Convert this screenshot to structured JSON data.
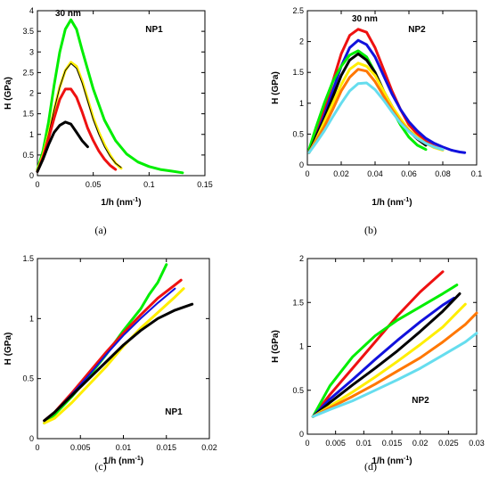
{
  "chart_data": [
    {
      "type": "line",
      "panel_caption": "(a)",
      "panel_name": "NP1",
      "annotation": "30 nm",
      "xlabel": "1/h (nm",
      "xlabel_sup": "-1",
      "xlabel_end": ")",
      "ylabel": "H (GPa)",
      "xlim": [
        0,
        0.15
      ],
      "ylim": [
        0,
        4
      ],
      "x_ticks": [
        0,
        0.05,
        0.1,
        0.15
      ],
      "x_tick_labels": [
        "0",
        "0.05",
        "0.1",
        "0.15"
      ],
      "y_ticks": [
        0,
        0.5,
        1,
        1.5,
        2,
        2.5,
        3,
        3.5,
        4
      ],
      "y_tick_labels": [
        "0",
        "0.5",
        "1",
        "1.5",
        "2",
        "2.5",
        "3",
        "3.5",
        "4"
      ],
      "grid": false,
      "series": [
        {
          "color": "#00ee00",
          "width": 3,
          "x": [
            0,
            0.005,
            0.01,
            0.015,
            0.02,
            0.025,
            0.03,
            0.035,
            0.04,
            0.05,
            0.06,
            0.07,
            0.08,
            0.09,
            0.1,
            0.11,
            0.12,
            0.13
          ],
          "y": [
            0.15,
            0.6,
            1.3,
            2.2,
            3.0,
            3.55,
            3.78,
            3.55,
            3.05,
            2.1,
            1.35,
            0.85,
            0.52,
            0.33,
            0.22,
            0.15,
            0.11,
            0.07
          ]
        },
        {
          "color": "#ffee00",
          "width": 3,
          "x": [
            0,
            0.005,
            0.01,
            0.015,
            0.02,
            0.025,
            0.03,
            0.035,
            0.04,
            0.045,
            0.05,
            0.055,
            0.06,
            0.065,
            0.07,
            0.075
          ],
          "y": [
            0.12,
            0.5,
            1.0,
            1.6,
            2.15,
            2.55,
            2.75,
            2.65,
            2.3,
            1.85,
            1.4,
            1.05,
            0.75,
            0.5,
            0.3,
            0.18
          ]
        },
        {
          "color": "#000000",
          "width": 1,
          "x": [
            0,
            0.005,
            0.01,
            0.015,
            0.02,
            0.025,
            0.03,
            0.035,
            0.04,
            0.045,
            0.05,
            0.055,
            0.06,
            0.065,
            0.07,
            0.075
          ],
          "y": [
            0.12,
            0.5,
            1.0,
            1.6,
            2.15,
            2.55,
            2.72,
            2.6,
            2.25,
            1.8,
            1.35,
            1.0,
            0.7,
            0.47,
            0.3,
            0.2
          ]
        },
        {
          "color": "#ee1111",
          "width": 3,
          "x": [
            0,
            0.005,
            0.01,
            0.015,
            0.02,
            0.025,
            0.03,
            0.035,
            0.04,
            0.045,
            0.05,
            0.055,
            0.06,
            0.065,
            0.07
          ],
          "y": [
            0.1,
            0.45,
            0.9,
            1.4,
            1.85,
            2.1,
            2.1,
            1.9,
            1.55,
            1.15,
            0.85,
            0.6,
            0.4,
            0.25,
            0.15
          ]
        },
        {
          "color": "#000000",
          "width": 3,
          "x": [
            0,
            0.005,
            0.01,
            0.015,
            0.02,
            0.025,
            0.03,
            0.035,
            0.04,
            0.045
          ],
          "y": [
            0.1,
            0.4,
            0.75,
            1.05,
            1.22,
            1.3,
            1.25,
            1.05,
            0.85,
            0.7
          ]
        }
      ]
    },
    {
      "type": "line",
      "panel_caption": "(b)",
      "panel_name": "NP2",
      "annotation": "30 nm",
      "xlabel": "1/h (nm",
      "xlabel_sup": "-1",
      "xlabel_end": ")",
      "ylabel": "H (GPa)",
      "xlim": [
        0,
        0.1
      ],
      "ylim": [
        0,
        2.5
      ],
      "x_ticks": [
        0,
        0.02,
        0.04,
        0.06,
        0.08,
        0.1
      ],
      "x_tick_labels": [
        "0",
        "0.02",
        "0.04",
        "0.06",
        "0.08",
        "0.1"
      ],
      "y_ticks": [
        0,
        0.5,
        1,
        1.5,
        2,
        2.5
      ],
      "y_tick_labels": [
        "0",
        "0.5",
        "1",
        "1.5",
        "2",
        "2.5"
      ],
      "grid": false,
      "series": [
        {
          "color": "#ee1111",
          "width": 3,
          "x": [
            0.001,
            0.005,
            0.01,
            0.015,
            0.02,
            0.025,
            0.03,
            0.035,
            0.04,
            0.045,
            0.05,
            0.055,
            0.06,
            0.065,
            0.07,
            0.075,
            0.08
          ],
          "y": [
            0.2,
            0.5,
            0.9,
            1.35,
            1.8,
            2.1,
            2.2,
            2.15,
            1.9,
            1.55,
            1.2,
            0.9,
            0.65,
            0.5,
            0.38,
            0.3,
            0.25
          ]
        },
        {
          "color": "#1111dd",
          "width": 3,
          "x": [
            0.001,
            0.005,
            0.01,
            0.015,
            0.02,
            0.025,
            0.03,
            0.035,
            0.04,
            0.045,
            0.05,
            0.055,
            0.06,
            0.065,
            0.07,
            0.075,
            0.08,
            0.085,
            0.09,
            0.093
          ],
          "y": [
            0.2,
            0.45,
            0.8,
            1.2,
            1.6,
            1.9,
            2.02,
            1.95,
            1.75,
            1.45,
            1.15,
            0.9,
            0.7,
            0.55,
            0.43,
            0.35,
            0.29,
            0.24,
            0.21,
            0.2
          ]
        },
        {
          "color": "#00ee00",
          "width": 3,
          "x": [
            0.001,
            0.005,
            0.01,
            0.015,
            0.02,
            0.025,
            0.03,
            0.035,
            0.04,
            0.045,
            0.05,
            0.055,
            0.06,
            0.065,
            0.07
          ],
          "y": [
            0.25,
            0.6,
            1.0,
            1.35,
            1.6,
            1.78,
            1.85,
            1.75,
            1.5,
            1.2,
            0.9,
            0.65,
            0.45,
            0.32,
            0.25
          ]
        },
        {
          "color": "#000000",
          "width": 3,
          "x": [
            0.001,
            0.005,
            0.01,
            0.015,
            0.02,
            0.025,
            0.03,
            0.035,
            0.04,
            0.045,
            0.05,
            0.055,
            0.06,
            0.065,
            0.07
          ],
          "y": [
            0.2,
            0.45,
            0.75,
            1.1,
            1.45,
            1.7,
            1.8,
            1.7,
            1.5,
            1.2,
            0.95,
            0.72,
            0.55,
            0.42,
            0.32
          ]
        },
        {
          "color": "#ffee00",
          "width": 3,
          "x": [
            0.001,
            0.005,
            0.01,
            0.015,
            0.02,
            0.025,
            0.03,
            0.035,
            0.04,
            0.045,
            0.05,
            0.055,
            0.06,
            0.065,
            0.07,
            0.075,
            0.08
          ],
          "y": [
            0.2,
            0.4,
            0.7,
            1.0,
            1.3,
            1.55,
            1.65,
            1.6,
            1.45,
            1.2,
            0.95,
            0.75,
            0.57,
            0.45,
            0.35,
            0.28,
            0.24
          ]
        },
        {
          "color": "#ff7700",
          "width": 3,
          "x": [
            0.001,
            0.005,
            0.01,
            0.015,
            0.02,
            0.025,
            0.03,
            0.035,
            0.04,
            0.045,
            0.05,
            0.055,
            0.06,
            0.065,
            0.07,
            0.075,
            0.08
          ],
          "y": [
            0.2,
            0.38,
            0.62,
            0.9,
            1.2,
            1.42,
            1.55,
            1.52,
            1.35,
            1.12,
            0.9,
            0.7,
            0.55,
            0.43,
            0.35,
            0.29,
            0.25
          ]
        },
        {
          "color": "#66ddee",
          "width": 3,
          "x": [
            0.001,
            0.005,
            0.01,
            0.015,
            0.02,
            0.025,
            0.03,
            0.035,
            0.04,
            0.045,
            0.05,
            0.055,
            0.06,
            0.065,
            0.07,
            0.075,
            0.08
          ],
          "y": [
            0.2,
            0.35,
            0.55,
            0.78,
            1.0,
            1.2,
            1.32,
            1.33,
            1.22,
            1.05,
            0.86,
            0.68,
            0.54,
            0.43,
            0.35,
            0.29,
            0.25
          ]
        }
      ]
    },
    {
      "type": "line",
      "panel_caption": "(c)",
      "panel_name": "NP1",
      "xlabel": "1/h (nm",
      "xlabel_sup": "-1",
      "xlabel_end": ")",
      "ylabel": "H (GPa)",
      "xlim": [
        0,
        0.02
      ],
      "ylim": [
        0,
        1.5
      ],
      "x_ticks": [
        0,
        0.005,
        0.01,
        0.015,
        0.02
      ],
      "x_tick_labels": [
        "0",
        "0.005",
        "0.01",
        "0.015",
        "0.02"
      ],
      "y_ticks": [
        0,
        0.5,
        1,
        1.5
      ],
      "y_tick_labels": [
        "0",
        "0.5",
        "1",
        "1.5"
      ],
      "grid": false,
      "series": [
        {
          "color": "#00ee00",
          "width": 3,
          "x": [
            0.0008,
            0.002,
            0.004,
            0.006,
            0.008,
            0.01,
            0.012,
            0.013,
            0.014,
            0.015
          ],
          "y": [
            0.13,
            0.2,
            0.35,
            0.52,
            0.7,
            0.9,
            1.08,
            1.2,
            1.3,
            1.45
          ]
        },
        {
          "color": "#ee1111",
          "width": 3,
          "x": [
            0.0008,
            0.002,
            0.004,
            0.006,
            0.008,
            0.01,
            0.012,
            0.014,
            0.016,
            0.0167
          ],
          "y": [
            0.15,
            0.22,
            0.38,
            0.55,
            0.72,
            0.88,
            1.03,
            1.17,
            1.28,
            1.32
          ]
        },
        {
          "color": "#1111dd",
          "width": 2,
          "x": [
            0.0008,
            0.002,
            0.004,
            0.006,
            0.008,
            0.01,
            0.012,
            0.014,
            0.016
          ],
          "y": [
            0.15,
            0.22,
            0.37,
            0.53,
            0.7,
            0.86,
            1.0,
            1.13,
            1.25
          ]
        },
        {
          "color": "#ffee00",
          "width": 3,
          "x": [
            0.0008,
            0.002,
            0.004,
            0.006,
            0.008,
            0.01,
            0.012,
            0.014,
            0.016,
            0.017
          ],
          "y": [
            0.13,
            0.17,
            0.3,
            0.45,
            0.6,
            0.77,
            0.92,
            1.05,
            1.18,
            1.25
          ]
        },
        {
          "color": "#000000",
          "width": 3,
          "x": [
            0.0008,
            0.002,
            0.004,
            0.006,
            0.008,
            0.01,
            0.012,
            0.014,
            0.016,
            0.018
          ],
          "y": [
            0.15,
            0.22,
            0.36,
            0.5,
            0.64,
            0.78,
            0.9,
            1.0,
            1.07,
            1.12
          ]
        }
      ]
    },
    {
      "type": "line",
      "panel_caption": "(d)",
      "panel_name": "NP2",
      "xlabel": "1/h (nm",
      "xlabel_sup": "-1",
      "xlabel_end": ")",
      "ylabel": "H (GPa)",
      "xlim": [
        0,
        0.03
      ],
      "ylim": [
        0,
        2
      ],
      "x_ticks": [
        0,
        0.005,
        0.01,
        0.015,
        0.02,
        0.025,
        0.03
      ],
      "x_tick_labels": [
        "0",
        "0.005",
        "0.01",
        "0.015",
        "0.02",
        "0.025",
        "0.03"
      ],
      "y_ticks": [
        0,
        0.5,
        1,
        1.5,
        2
      ],
      "y_tick_labels": [
        "0",
        "0.5",
        "1",
        "1.5",
        "2"
      ],
      "grid": false,
      "series": [
        {
          "color": "#ee1111",
          "width": 3,
          "x": [
            0.001,
            0.004,
            0.008,
            0.012,
            0.016,
            0.02,
            0.024
          ],
          "y": [
            0.2,
            0.45,
            0.75,
            1.05,
            1.35,
            1.62,
            1.85
          ]
        },
        {
          "color": "#00ee00",
          "width": 3,
          "x": [
            0.001,
            0.004,
            0.008,
            0.012,
            0.016,
            0.02,
            0.024,
            0.0265
          ],
          "y": [
            0.2,
            0.55,
            0.88,
            1.12,
            1.3,
            1.45,
            1.6,
            1.7
          ]
        },
        {
          "color": "#1111dd",
          "width": 3,
          "x": [
            0.001,
            0.004,
            0.008,
            0.012,
            0.016,
            0.02,
            0.024,
            0.026
          ],
          "y": [
            0.2,
            0.4,
            0.62,
            0.85,
            1.07,
            1.28,
            1.47,
            1.55
          ]
        },
        {
          "color": "#000000",
          "width": 3,
          "x": [
            0.001,
            0.004,
            0.008,
            0.012,
            0.016,
            0.02,
            0.024,
            0.027
          ],
          "y": [
            0.2,
            0.36,
            0.56,
            0.75,
            0.95,
            1.17,
            1.4,
            1.6
          ]
        },
        {
          "color": "#ffee00",
          "width": 3,
          "x": [
            0.001,
            0.004,
            0.008,
            0.012,
            0.016,
            0.02,
            0.024,
            0.028
          ],
          "y": [
            0.2,
            0.32,
            0.48,
            0.65,
            0.83,
            1.02,
            1.22,
            1.48
          ]
        },
        {
          "color": "#ff7700",
          "width": 3,
          "x": [
            0.001,
            0.004,
            0.008,
            0.012,
            0.016,
            0.02,
            0.024,
            0.028,
            0.03
          ],
          "y": [
            0.2,
            0.3,
            0.43,
            0.57,
            0.72,
            0.87,
            1.05,
            1.25,
            1.38
          ]
        },
        {
          "color": "#66ddee",
          "width": 3,
          "x": [
            0.001,
            0.004,
            0.008,
            0.012,
            0.016,
            0.02,
            0.024,
            0.028,
            0.03
          ],
          "y": [
            0.2,
            0.28,
            0.38,
            0.5,
            0.62,
            0.75,
            0.9,
            1.05,
            1.15
          ]
        }
      ]
    }
  ]
}
